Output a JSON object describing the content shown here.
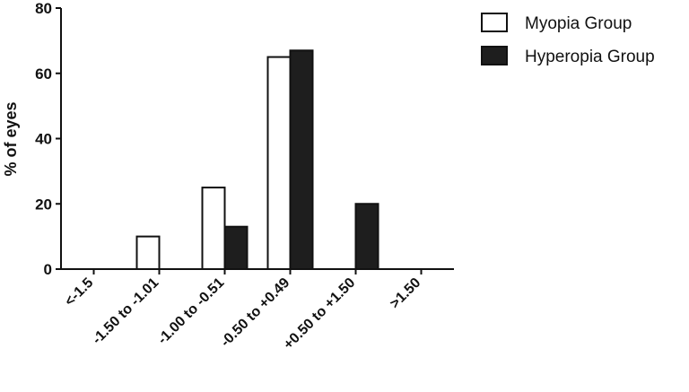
{
  "chart_data": {
    "type": "bar",
    "y_label": "% of eyes",
    "categories": [
      "<-1.5",
      "-1.50 to -1.01",
      "-1.00 to -0.51",
      "-0.50 to +0.49",
      "+0.50 to +1.50",
      ">1.50"
    ],
    "series": [
      {
        "name": "Myopia Group",
        "color": "#ffffff",
        "values": [
          0,
          10,
          25,
          65,
          0,
          0
        ]
      },
      {
        "name": "Hyperopia Group",
        "color": "#1e1e1e",
        "values": [
          0,
          0,
          13,
          67,
          20,
          0
        ]
      }
    ],
    "ylim": [
      0,
      80
    ],
    "yticks": [
      0,
      20,
      40,
      60,
      80
    ],
    "legend": "upper right"
  }
}
